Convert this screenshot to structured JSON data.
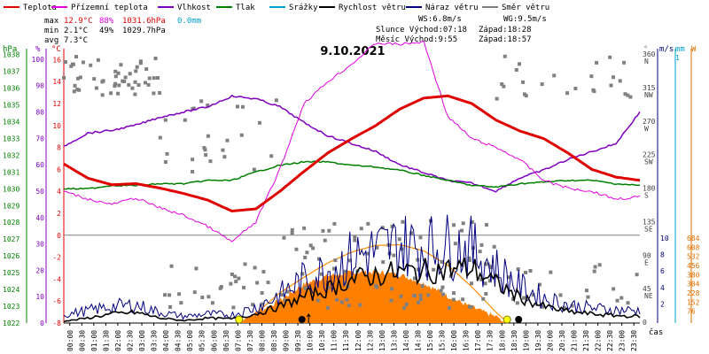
{
  "chart_data": {
    "type": "line",
    "title": "9.10.2021",
    "legend": [
      {
        "name": "Teplota",
        "color": "#e00000"
      },
      {
        "name": "Přízemní teplota",
        "color": "#e000e0"
      },
      {
        "name": "Vlhkost",
        "color": "#8000c0"
      },
      {
        "name": "Tlak",
        "color": "#008000"
      },
      {
        "name": "Srážky",
        "color": "#00a0d0"
      },
      {
        "name": "Rychlost větru",
        "color": "#000000"
      },
      {
        "name": "Náraz větru",
        "color": "#000080"
      },
      {
        "name": "Směr větru",
        "color": "#808080"
      }
    ],
    "stats": {
      "max_label": "max",
      "min_label": "min",
      "avg_label": "avg",
      "max_temp": "12.9°C",
      "max_hum": "88%",
      "max_press": "1031.6hPa",
      "max_rain": "0.0mm",
      "min_temp": "2.1°C",
      "min_hum": "49%",
      "min_press": "1029.7hPa",
      "avg_temp": "7.3°C",
      "ws": "WS:6.8m/s",
      "wg": "WG:9.5m/s",
      "sun": "Slunce Východ:07:18",
      "sun_set": "Západ:18:28",
      "moon": "Měsíc Východ:9:55",
      "moon_set": "Západ:18:57"
    },
    "axes": {
      "hpa_label": "hPa",
      "pct_label": "%",
      "degc_label": "°C",
      "deg_label": "°",
      "ms_label": "m/s",
      "mm_label": "mm",
      "w_label": "W",
      "x_label": "čas",
      "hpa_ticks": [
        "1038",
        "1037",
        "1036",
        "1035",
        "1034",
        "1033",
        "1032",
        "1031",
        "1030",
        "1029",
        "1028",
        "1027",
        "1026",
        "1025",
        "1024",
        "1023",
        "1022"
      ],
      "pct_ticks": [
        "100",
        "90",
        "80",
        "70",
        "60",
        "50",
        "40",
        "30",
        "20",
        "10",
        "0"
      ],
      "temp_ticks": [
        "16",
        "14",
        "12",
        "10",
        "8",
        "6",
        "4",
        "2",
        "0",
        "-2",
        "-4",
        "-6",
        "-8"
      ],
      "dir_ticks": [
        [
          "360",
          "N"
        ],
        [
          "315",
          "NW"
        ],
        [
          "270",
          "W"
        ],
        [
          "225",
          "SW"
        ],
        [
          "180",
          "S"
        ],
        [
          "135",
          "SE"
        ],
        [
          "90",
          "E"
        ],
        [
          "45",
          "NE"
        ],
        [
          "0",
          ""
        ]
      ],
      "ms_ticks": [
        "10",
        "8",
        "6",
        "4",
        "2"
      ],
      "mm_ticks": [
        "1"
      ],
      "w_ticks": [
        "684",
        "608",
        "532",
        "456",
        "380",
        "304",
        "228",
        "152",
        "76"
      ],
      "time_ticks": [
        "00:00",
        "00:30",
        "01:00",
        "01:30",
        "02:00",
        "02:30",
        "03:00",
        "03:30",
        "04:00",
        "04:30",
        "05:00",
        "05:30",
        "06:00",
        "06:30",
        "07:00",
        "07:30",
        "08:00",
        "08:30",
        "09:00",
        "09:30",
        "10:00",
        "10:30",
        "11:00",
        "11:30",
        "12:00",
        "12:30",
        "13:00",
        "13:30",
        "14:00",
        "14:30",
        "15:00",
        "15:30",
        "16:00",
        "16:30",
        "17:00",
        "17:30",
        "18:00",
        "18:30",
        "19:00",
        "19:30",
        "20:00",
        "20:30",
        "21:00",
        "21:30",
        "22:00",
        "22:30",
        "23:00",
        "23:30"
      ]
    },
    "series": {
      "hours": [
        0,
        1,
        2,
        3,
        4,
        5,
        6,
        7,
        8,
        9,
        10,
        11,
        12,
        13,
        14,
        15,
        16,
        17,
        18,
        19,
        20,
        21,
        22,
        23,
        24
      ],
      "temperature": [
        6.5,
        5.2,
        4.6,
        4.7,
        4.3,
        3.8,
        3.2,
        2.2,
        2.4,
        4.0,
        5.8,
        7.5,
        8.8,
        10.0,
        11.5,
        12.5,
        12.7,
        12.0,
        10.5,
        9.5,
        8.8,
        7.5,
        6.0,
        5.3,
        5.0
      ],
      "ground_temp": [
        4.0,
        3.3,
        2.8,
        3.4,
        2.5,
        1.8,
        0.8,
        -0.6,
        1.2,
        6.0,
        12.0,
        14.0,
        15.6,
        17.5,
        17.4,
        17.6,
        10.8,
        8.8,
        8.0,
        6.9,
        5.0,
        4.3,
        4.0,
        3.3,
        3.5
      ],
      "humidity": [
        67,
        72,
        73,
        75,
        78,
        80,
        82,
        86,
        85,
        82,
        76,
        71,
        68,
        65,
        60,
        57,
        54,
        53,
        50,
        55,
        58,
        62,
        65,
        68,
        80
      ],
      "pressure": [
        1030.0,
        1030.0,
        1030.2,
        1030.2,
        1030.3,
        1030.3,
        1030.5,
        1030.5,
        1031.0,
        1031.4,
        1031.6,
        1031.6,
        1031.4,
        1031.3,
        1031.1,
        1030.8,
        1030.5,
        1030.2,
        1030.1,
        1030.3,
        1030.4,
        1030.5,
        1030.5,
        1030.3,
        1030.2
      ],
      "wind_speed": [
        0.2,
        0.6,
        1.1,
        1.3,
        0.6,
        0.3,
        0.6,
        0.5,
        1.1,
        2.0,
        3.2,
        4.1,
        5.3,
        5.8,
        6.2,
        6.3,
        6.5,
        6.7,
        4.8,
        3.1,
        2.0,
        1.4,
        1.1,
        0.9,
        0.8
      ],
      "wind_gust": [
        1.0,
        1.5,
        2.0,
        2.2,
        1.3,
        0.8,
        1.1,
        1.0,
        1.9,
        3.4,
        5.3,
        6.4,
        8.0,
        8.8,
        9.5,
        9.2,
        9.4,
        9.0,
        6.6,
        4.4,
        3.0,
        2.2,
        1.8,
        1.6,
        1.5
      ],
      "solar_hours": [
        7.3,
        8,
        9,
        10,
        11,
        12,
        13,
        14,
        15,
        16,
        17,
        18,
        18.5
      ],
      "solar": [
        0,
        60,
        165,
        300,
        370,
        400,
        400,
        380,
        310,
        200,
        110,
        30,
        0
      ],
      "solar_theory_hours": [
        7.3,
        8,
        9,
        10,
        11,
        12,
        13,
        14,
        15,
        16,
        17,
        18,
        18.5
      ],
      "solar_theory": [
        0,
        80,
        250,
        380,
        500,
        590,
        645,
        650,
        600,
        480,
        300,
        90,
        0
      ]
    }
  }
}
